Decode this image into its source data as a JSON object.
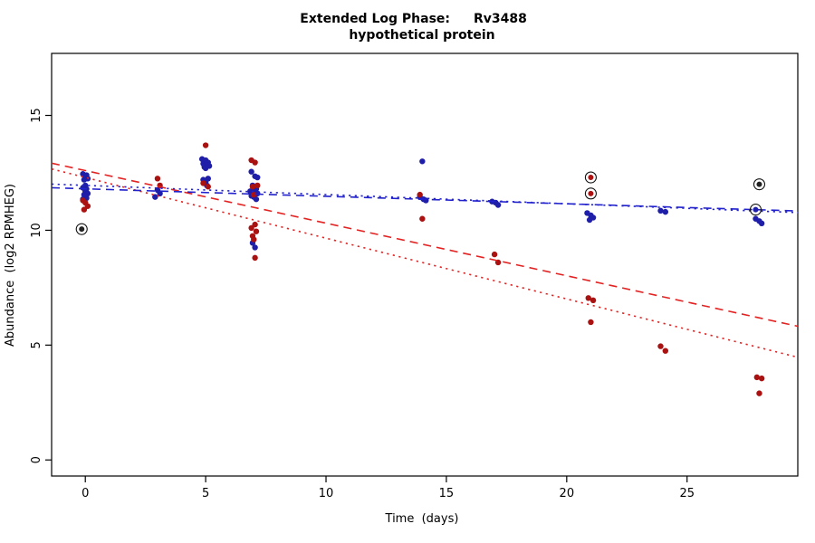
{
  "chart_data": {
    "type": "scatter",
    "title_prefix": "Extended Log Phase:",
    "title_gene": "Rv3488",
    "subtitle": "hypothetical protein",
    "xlabel": "Time  (days)",
    "ylabel": "Abundance  (log2 RPMHEG)",
    "xlim": [
      -1.4,
      29.6
    ],
    "ylim": [
      -0.7,
      17.7
    ],
    "x_ticks": [
      0,
      5,
      10,
      15,
      20,
      25
    ],
    "y_ticks": [
      0,
      5,
      10,
      15
    ],
    "grid": false,
    "legend": "none",
    "colors": {
      "blue_points": "#1e1ea8",
      "red_points": "#aa1111",
      "blue_line": "#2222cc",
      "red_line": "#e32222",
      "flag_ring": "#111111"
    },
    "series": [
      {
        "name": "blue-points",
        "color": "#1e1ea8",
        "points": [
          [
            -0.1,
            12.45
          ],
          [
            0.05,
            12.4
          ],
          [
            0,
            12.3
          ],
          [
            0.1,
            12.25
          ],
          [
            -0.05,
            12.2
          ],
          [
            0,
            11.95
          ],
          [
            -0.1,
            11.85
          ],
          [
            0.05,
            11.8
          ],
          [
            0,
            11.7
          ],
          [
            0.1,
            11.6
          ],
          [
            -0.05,
            11.55
          ],
          [
            0,
            11.5
          ],
          [
            0.05,
            11.4
          ],
          [
            -0.1,
            11.35
          ],
          [
            3,
            11.75
          ],
          [
            3.1,
            11.6
          ],
          [
            2.9,
            11.45
          ],
          [
            4.85,
            13.1
          ],
          [
            5,
            13.05
          ],
          [
            5.1,
            12.95
          ],
          [
            4.9,
            12.9
          ],
          [
            5.05,
            12.85
          ],
          [
            5.15,
            12.8
          ],
          [
            4.95,
            12.75
          ],
          [
            5,
            12.7
          ],
          [
            5.1,
            12.25
          ],
          [
            4.9,
            12.2
          ],
          [
            5,
            12.1
          ],
          [
            5.05,
            11.95
          ],
          [
            6.9,
            12.55
          ],
          [
            7.05,
            12.35
          ],
          [
            7.15,
            12.3
          ],
          [
            6.95,
            11.95
          ],
          [
            7,
            11.85
          ],
          [
            7.1,
            11.8
          ],
          [
            6.85,
            11.7
          ],
          [
            7.05,
            11.65
          ],
          [
            7.15,
            11.6
          ],
          [
            6.9,
            11.5
          ],
          [
            7,
            11.45
          ],
          [
            7.1,
            11.35
          ],
          [
            6.95,
            9.45
          ],
          [
            7.05,
            9.25
          ],
          [
            14,
            13.0
          ],
          [
            13.9,
            11.45
          ],
          [
            14.05,
            11.35
          ],
          [
            14.15,
            11.3
          ],
          [
            16.9,
            11.25
          ],
          [
            17.05,
            11.2
          ],
          [
            17.15,
            11.1
          ],
          [
            20.85,
            10.75
          ],
          [
            21,
            10.65
          ],
          [
            21.1,
            10.55
          ],
          [
            20.95,
            10.45
          ],
          [
            23.9,
            10.85
          ],
          [
            24.1,
            10.8
          ],
          [
            27.85,
            10.5
          ],
          [
            28,
            10.4
          ],
          [
            28.1,
            10.3
          ]
        ]
      },
      {
        "name": "red-points",
        "color": "#aa1111",
        "points": [
          [
            -0.1,
            11.3
          ],
          [
            0,
            11.2
          ],
          [
            0.1,
            11.05
          ],
          [
            -0.05,
            10.9
          ],
          [
            3,
            12.25
          ],
          [
            3.1,
            11.95
          ],
          [
            5,
            13.7
          ],
          [
            4.9,
            12.05
          ],
          [
            5.1,
            11.9
          ],
          [
            6.9,
            13.05
          ],
          [
            7.05,
            12.95
          ],
          [
            7.15,
            11.95
          ],
          [
            6.95,
            11.9
          ],
          [
            7,
            11.55
          ],
          [
            7.05,
            10.25
          ],
          [
            6.9,
            10.1
          ],
          [
            7.1,
            9.95
          ],
          [
            6.95,
            9.75
          ],
          [
            7,
            9.6
          ],
          [
            7.05,
            8.8
          ],
          [
            13.9,
            11.55
          ],
          [
            14,
            10.5
          ],
          [
            17,
            8.95
          ],
          [
            17.15,
            8.6
          ],
          [
            20.9,
            7.05
          ],
          [
            21.1,
            6.95
          ],
          [
            21,
            6.0
          ],
          [
            23.9,
            4.95
          ],
          [
            24.1,
            4.75
          ],
          [
            27.9,
            3.6
          ],
          [
            28.1,
            3.55
          ],
          [
            28,
            2.9
          ]
        ]
      }
    ],
    "flagged_points": [
      {
        "x": -0.15,
        "y": 10.05,
        "color": "#222222"
      },
      {
        "x": 21,
        "y": 12.3,
        "color": "#aa1111"
      },
      {
        "x": 21,
        "y": 11.6,
        "color": "#aa1111"
      },
      {
        "x": 28,
        "y": 12.0,
        "color": "#222222"
      },
      {
        "x": 27.85,
        "y": 10.9,
        "color": "#1e1ea8"
      }
    ],
    "trend_lines": [
      {
        "name": "red-dashed-fit",
        "style": "dashed",
        "color": "#e32222",
        "x1": -1.4,
        "y1": 12.92,
        "x2": 29.6,
        "y2": 5.82
      },
      {
        "name": "red-dotted-fit",
        "style": "dotted",
        "color": "#e32222",
        "x1": -1.4,
        "y1": 12.67,
        "x2": 29.6,
        "y2": 4.47
      },
      {
        "name": "blue-dashed-fit",
        "style": "dashed",
        "color": "#2222cc",
        "x1": -1.4,
        "y1": 11.85,
        "x2": 29.6,
        "y2": 10.84
      },
      {
        "name": "blue-dotted-fit",
        "style": "dotted",
        "color": "#2222cc",
        "x1": -1.4,
        "y1": 12.01,
        "x2": 29.6,
        "y2": 10.77
      }
    ]
  }
}
